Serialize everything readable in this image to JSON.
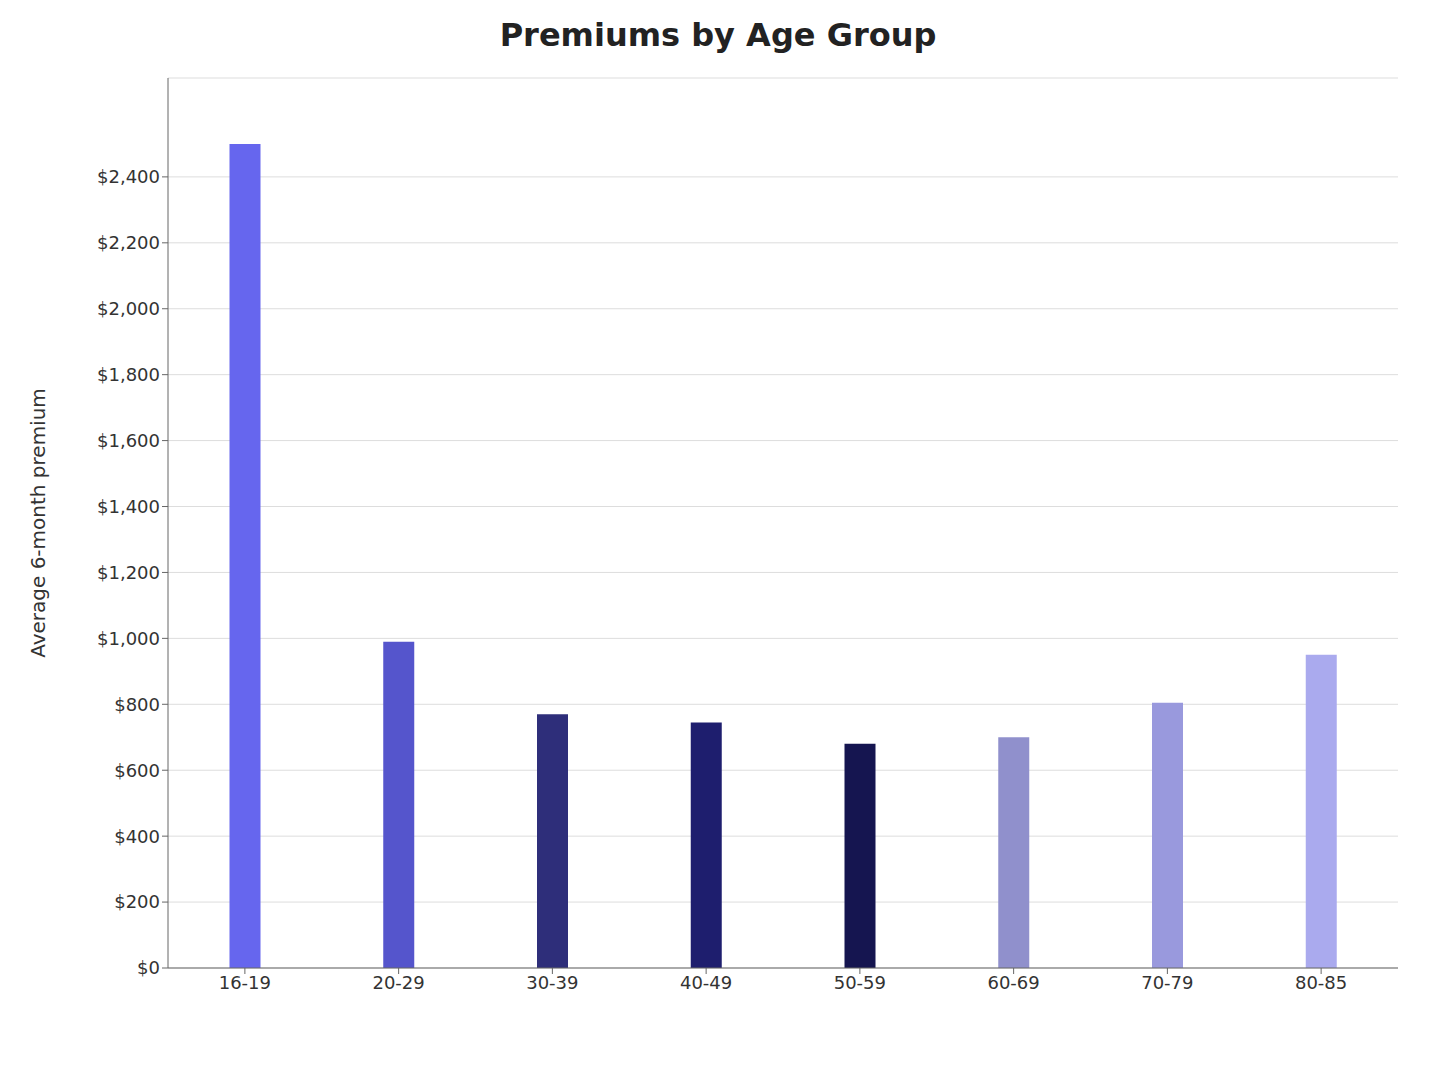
{
  "chart_data": {
    "type": "bar",
    "title": "Premiums by Age Group",
    "ylabel": "Average 6-month premium",
    "categories": [
      "16-19",
      "20-29",
      "30-39",
      "40-49",
      "50-59",
      "60-69",
      "70-79",
      "80-85"
    ],
    "values": [
      2500,
      990,
      770,
      745,
      680,
      700,
      805,
      950
    ],
    "colors": [
      "#6666ee",
      "#5555cc",
      "#2e2e7a",
      "#1e1e6e",
      "#151550",
      "#9090cc",
      "#9999dd",
      "#aaaaee"
    ],
    "ylim": [
      0,
      2700
    ],
    "yticks": [
      {
        "value": 0,
        "label": "$0"
      },
      {
        "value": 200,
        "label": "$200"
      },
      {
        "value": 400,
        "label": "$400"
      },
      {
        "value": 600,
        "label": "$600"
      },
      {
        "value": 800,
        "label": "$800"
      },
      {
        "value": 1000,
        "label": "$1,000"
      },
      {
        "value": 1200,
        "label": "$1,200"
      },
      {
        "value": 1400,
        "label": "$1,400"
      },
      {
        "value": 1600,
        "label": "$1,600"
      },
      {
        "value": 1800,
        "label": "$1,800"
      },
      {
        "value": 2000,
        "label": "$2,000"
      },
      {
        "value": 2200,
        "label": "$2,200"
      },
      {
        "value": 2400,
        "label": "$2,400"
      }
    ],
    "grid": true
  }
}
